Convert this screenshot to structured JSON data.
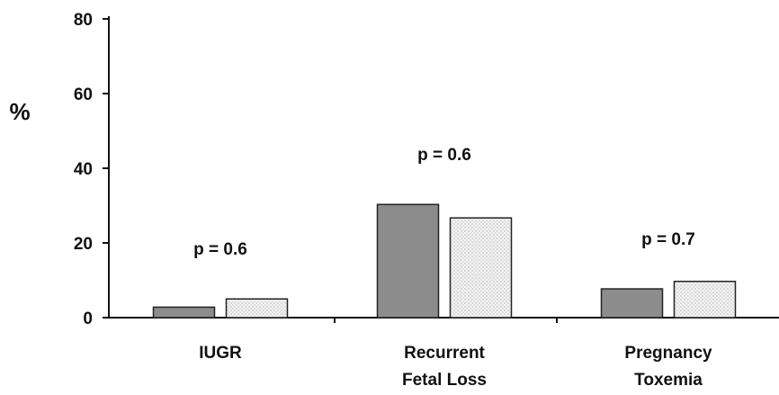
{
  "chart_data": {
    "type": "bar",
    "title": "",
    "xlabel": "",
    "ylabel": "%",
    "ylim": [
      0,
      80
    ],
    "yticks": [
      0,
      20,
      40,
      60,
      80
    ],
    "grid": false,
    "categories": [
      [
        "IUGR"
      ],
      [
        "Recurrent",
        "Fetal Loss"
      ],
      [
        "Pregnancy",
        "Toxemia"
      ]
    ],
    "series": [
      {
        "values": [
          2.8,
          30.3,
          7.7
        ],
        "color": "#8c8c8c",
        "pattern": "solid"
      },
      {
        "values": [
          5.0,
          26.7,
          9.7
        ],
        "color": "#e6e6e6",
        "pattern": "dotted"
      }
    ],
    "annotations": [
      "p = 0.6",
      "p = 0.6",
      "p = 0.7"
    ]
  }
}
